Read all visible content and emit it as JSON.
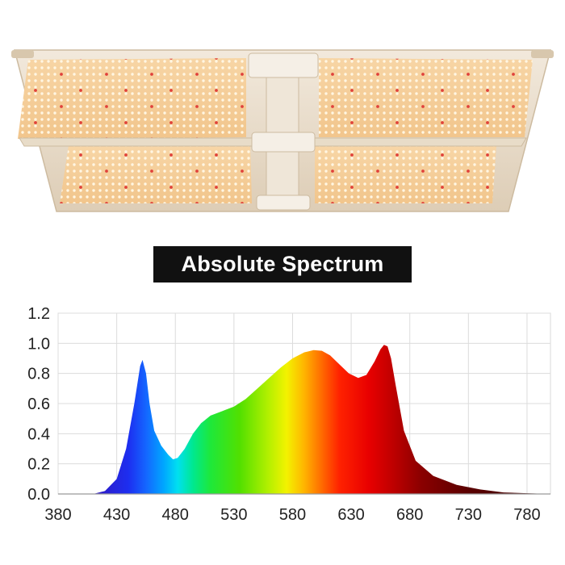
{
  "product": {
    "image_name": "led-grow-light-panel-quantum-board",
    "frame_color": "#e9ddc9",
    "board_color": "#f6cf9c",
    "led_color": "#fff7e6",
    "red_led_color": "#e0413a"
  },
  "chart_title": "Absolute Spectrum",
  "chart_data": {
    "type": "area",
    "title": "Absolute Spectrum",
    "xlabel": "",
    "ylabel": "",
    "xlim": [
      380,
      800
    ],
    "ylim": [
      0,
      1.2
    ],
    "x_ticks": [
      "380",
      "430",
      "480",
      "530",
      "580",
      "630",
      "680",
      "730",
      "780"
    ],
    "y_ticks": [
      "0.0",
      "0.2",
      "0.4",
      "0.6",
      "0.8",
      "1.0",
      "1.2"
    ],
    "grid": true,
    "fill": "wavelength-rainbow",
    "series": [
      {
        "x": [
          410,
          420,
          430,
          438,
          445,
          450,
          452,
          455,
          458,
          462,
          468,
          474,
          478,
          482,
          488,
          495,
          502,
          510,
          520,
          530,
          540,
          550,
          560,
          570,
          580,
          590,
          598,
          605,
          612,
          620,
          628,
          636,
          643,
          650,
          655,
          658,
          661,
          664,
          668,
          675,
          685,
          700,
          720,
          740,
          760,
          780,
          800
        ],
        "y": [
          0.0,
          0.02,
          0.1,
          0.3,
          0.6,
          0.85,
          0.89,
          0.8,
          0.6,
          0.42,
          0.32,
          0.26,
          0.23,
          0.24,
          0.3,
          0.4,
          0.47,
          0.52,
          0.55,
          0.58,
          0.63,
          0.7,
          0.77,
          0.84,
          0.9,
          0.94,
          0.955,
          0.95,
          0.92,
          0.86,
          0.8,
          0.77,
          0.79,
          0.88,
          0.96,
          0.99,
          0.98,
          0.9,
          0.72,
          0.42,
          0.22,
          0.12,
          0.06,
          0.03,
          0.01,
          0.005,
          0.0
        ]
      }
    ]
  }
}
